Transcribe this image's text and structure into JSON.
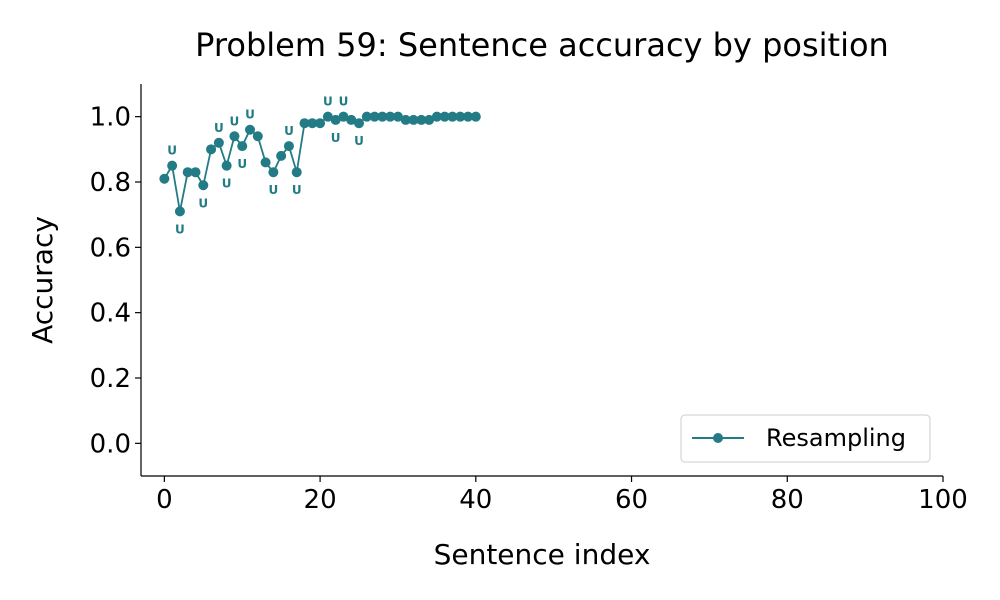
{
  "chart_data": {
    "type": "line",
    "title": "Problem 59: Sentence accuracy by position",
    "xlabel": "Sentence index",
    "ylabel": "Accuracy",
    "xlim": [
      -3,
      100
    ],
    "ylim": [
      -0.1,
      1.1
    ],
    "xticks": [
      "0",
      "20",
      "40",
      "60",
      "80",
      "100"
    ],
    "yticks": [
      "0.0",
      "0.2",
      "0.4",
      "0.6",
      "0.8",
      "1.0"
    ],
    "grid": false,
    "legend_position": "bottom-right",
    "color": "#237b85",
    "series": [
      {
        "name": "Resampling",
        "x": [
          0,
          1,
          2,
          3,
          4,
          5,
          6,
          7,
          8,
          9,
          10,
          11,
          12,
          13,
          14,
          15,
          16,
          17,
          18,
          19,
          20,
          21,
          22,
          23,
          24,
          25,
          26,
          27,
          28,
          29,
          30,
          31,
          32,
          33,
          34,
          35,
          36,
          37,
          38,
          39,
          40
        ],
        "values": [
          0.81,
          0.85,
          0.71,
          0.83,
          0.83,
          0.79,
          0.9,
          0.92,
          0.85,
          0.94,
          0.91,
          0.96,
          0.94,
          0.86,
          0.83,
          0.88,
          0.91,
          0.83,
          0.98,
          0.98,
          0.98,
          1.0,
          0.99,
          1.0,
          0.99,
          0.98,
          1.0,
          1.0,
          1.0,
          1.0,
          1.0,
          0.99,
          0.99,
          0.99,
          0.99,
          1.0,
          1.0,
          1.0,
          1.0,
          1.0,
          1.0
        ]
      }
    ],
    "annotations": [
      {
        "text": "U",
        "x": 1,
        "position": "above"
      },
      {
        "text": "U",
        "x": 2,
        "position": "below"
      },
      {
        "text": "U",
        "x": 5,
        "position": "below"
      },
      {
        "text": "U",
        "x": 7,
        "position": "above"
      },
      {
        "text": "U",
        "x": 8,
        "position": "below"
      },
      {
        "text": "U",
        "x": 9,
        "position": "above"
      },
      {
        "text": "U",
        "x": 10,
        "position": "below"
      },
      {
        "text": "U",
        "x": 11,
        "position": "above"
      },
      {
        "text": "U",
        "x": 14,
        "position": "below"
      },
      {
        "text": "U",
        "x": 16,
        "position": "above"
      },
      {
        "text": "U",
        "x": 17,
        "position": "below"
      },
      {
        "text": "U",
        "x": 21,
        "position": "above"
      },
      {
        "text": "U",
        "x": 22,
        "position": "below"
      },
      {
        "text": "U",
        "x": 23,
        "position": "above"
      },
      {
        "text": "U",
        "x": 25,
        "position": "below"
      }
    ]
  }
}
